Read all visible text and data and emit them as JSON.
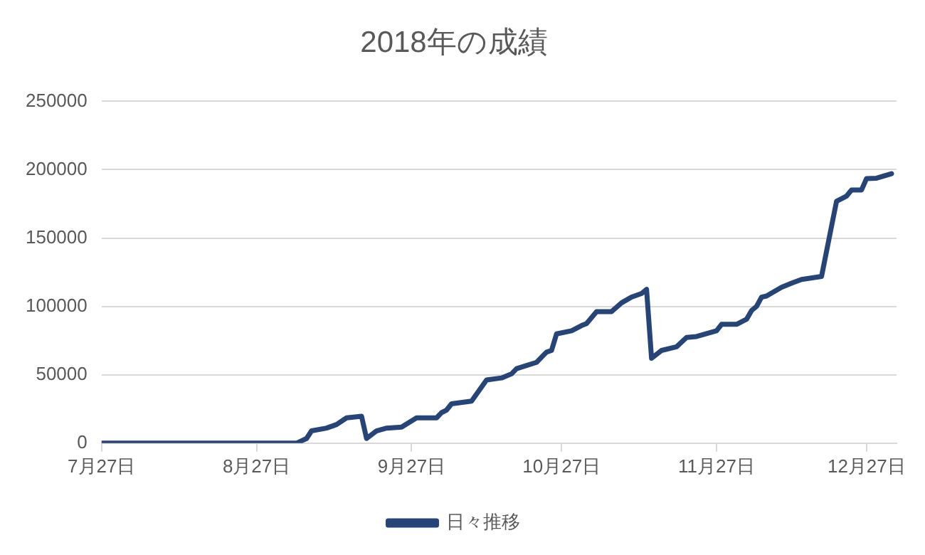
{
  "chart_data": {
    "type": "line",
    "title": "2018年の成績",
    "x": [
      "2018-07-27",
      "2018-09-04",
      "2018-09-06",
      "2018-09-07",
      "2018-09-10",
      "2018-09-12",
      "2018-09-14",
      "2018-09-17",
      "2018-09-18",
      "2018-09-20",
      "2018-09-22",
      "2018-09-25",
      "2018-09-28",
      "2018-10-02",
      "2018-10-03",
      "2018-10-04",
      "2018-10-05",
      "2018-10-09",
      "2018-10-12",
      "2018-10-15",
      "2018-10-17",
      "2018-10-18",
      "2018-10-22",
      "2018-10-24",
      "2018-10-25",
      "2018-10-26",
      "2018-10-29",
      "2018-10-31",
      "2018-11-01",
      "2018-11-03",
      "2018-11-06",
      "2018-11-08",
      "2018-11-10",
      "2018-11-12",
      "2018-11-13",
      "2018-11-14",
      "2018-11-16",
      "2018-11-19",
      "2018-11-21",
      "2018-11-23",
      "2018-11-27",
      "2018-11-28",
      "2018-12-01",
      "2018-12-03",
      "2018-12-04",
      "2018-12-05",
      "2018-12-06",
      "2018-12-07",
      "2018-12-10",
      "2018-12-12",
      "2018-12-14",
      "2018-12-18",
      "2018-12-20",
      "2018-12-21",
      "2018-12-23",
      "2018-12-24",
      "2018-12-26",
      "2018-12-27",
      "2018-12-29",
      "2019-01-01"
    ],
    "series": [
      {
        "name": "日々推移",
        "color": "#264478",
        "values": [
          0,
          0,
          3400,
          9000,
          11000,
          13600,
          18500,
          19700,
          3400,
          9000,
          11000,
          11700,
          18500,
          18500,
          22300,
          24200,
          28800,
          30700,
          46200,
          47700,
          50700,
          54500,
          59100,
          66600,
          67800,
          79900,
          82200,
          86000,
          87500,
          96200,
          96200,
          102600,
          106800,
          109400,
          112500,
          62100,
          67800,
          70500,
          77300,
          78000,
          82200,
          86900,
          86900,
          90600,
          97000,
          100000,
          106800,
          107600,
          114000,
          117000,
          119700,
          121900,
          158700,
          176900,
          180700,
          185200,
          185200,
          193500,
          193800,
          197100
        ]
      }
    ],
    "xlim": [
      "2018-07-27",
      "2019-01-02"
    ],
    "xticks": [
      {
        "value": "2018-07-27",
        "label": "7月27日"
      },
      {
        "value": "2018-08-27",
        "label": "8月27日"
      },
      {
        "value": "2018-09-27",
        "label": "9月27日"
      },
      {
        "value": "2018-10-27",
        "label": "10月27日"
      },
      {
        "value": "2018-11-27",
        "label": "11月27日"
      },
      {
        "value": "2018-12-27",
        "label": "12月27日"
      }
    ],
    "ylim": [
      0,
      250000
    ],
    "yticks": [
      0,
      50000,
      100000,
      150000,
      200000,
      250000
    ],
    "grid": "y",
    "legend": "bottom",
    "marker": "none",
    "line_style": "solid"
  }
}
